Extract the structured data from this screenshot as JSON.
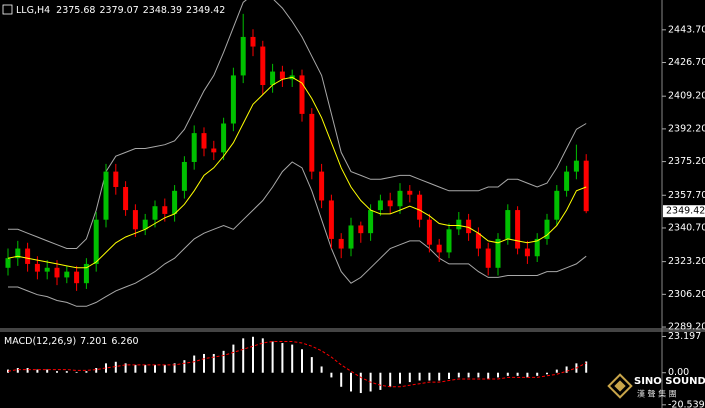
{
  "chart_data": [
    {
      "type": "candlestick",
      "title": "LLG,H4",
      "open": [
        2320,
        2325,
        2330,
        2322,
        2318,
        2320,
        2315,
        2318,
        2312,
        2322,
        2345,
        2370,
        2362,
        2350,
        2340,
        2345,
        2352,
        2348,
        2360,
        2375,
        2390,
        2382,
        2380,
        2395,
        2420,
        2440,
        2435,
        2415,
        2422,
        2418,
        2420,
        2400,
        2370,
        2355,
        2335,
        2330,
        2342,
        2338,
        2350,
        2355,
        2352,
        2360,
        2358,
        2345,
        2332,
        2328,
        2340,
        2345,
        2338,
        2330,
        2320,
        2335,
        2350,
        2330,
        2326,
        2335,
        2345,
        2360,
        2370,
        2375.68
      ],
      "high": [
        2330,
        2334,
        2333,
        2326,
        2324,
        2324,
        2321,
        2321,
        2325,
        2349,
        2374,
        2374,
        2365,
        2353,
        2348,
        2355,
        2356,
        2363,
        2378,
        2394,
        2393,
        2386,
        2398,
        2424,
        2452,
        2444,
        2438,
        2426,
        2425,
        2423,
        2423,
        2403,
        2374,
        2358,
        2338,
        2346,
        2344,
        2353,
        2358,
        2359,
        2364,
        2363,
        2360,
        2348,
        2335,
        2343,
        2349,
        2348,
        2341,
        2333,
        2338,
        2353,
        2352,
        2334,
        2338,
        2348,
        2363,
        2373,
        2384,
        2379.07
      ],
      "low": [
        2316,
        2321,
        2318,
        2314,
        2314,
        2311,
        2312,
        2308,
        2309,
        2318,
        2341,
        2358,
        2347,
        2336,
        2337,
        2341,
        2344,
        2344,
        2356,
        2371,
        2378,
        2376,
        2376,
        2391,
        2416,
        2430,
        2410,
        2411,
        2414,
        2414,
        2396,
        2366,
        2351,
        2330,
        2325,
        2326,
        2333,
        2334,
        2347,
        2348,
        2348,
        2354,
        2341,
        2328,
        2323,
        2325,
        2337,
        2334,
        2326,
        2316,
        2316,
        2332,
        2327,
        2322,
        2323,
        2332,
        2342,
        2357,
        2366,
        2348.39
      ],
      "close": [
        2325,
        2330,
        2322,
        2318,
        2320,
        2315,
        2318,
        2312,
        2322,
        2345,
        2370,
        2362,
        2350,
        2340,
        2345,
        2352,
        2348,
        2360,
        2375,
        2390,
        2382,
        2380,
        2395,
        2420,
        2440,
        2435,
        2415,
        2422,
        2418,
        2420,
        2400,
        2370,
        2355,
        2335,
        2330,
        2342,
        2338,
        2350,
        2355,
        2352,
        2360,
        2358,
        2345,
        2332,
        2328,
        2340,
        2345,
        2338,
        2330,
        2320,
        2335,
        2350,
        2330,
        2326,
        2335,
        2345,
        2360,
        2370,
        2375.68,
        2349.42
      ],
      "up_color": "#00c000",
      "down_color": "#ff0000",
      "ma": {
        "color": "#ffff00",
        "values": [
          2325,
          2326,
          2325,
          2324,
          2323,
          2322,
          2321,
          2320,
          2320,
          2323,
          2328,
          2333,
          2336,
          2338,
          2340,
          2343,
          2346,
          2348,
          2353,
          2360,
          2368,
          2372,
          2378,
          2385,
          2395,
          2405,
          2410,
          2415,
          2418,
          2419,
          2416,
          2408,
          2398,
          2385,
          2372,
          2362,
          2355,
          2350,
          2348,
          2348,
          2350,
          2352,
          2350,
          2347,
          2343,
          2342,
          2342,
          2341,
          2338,
          2334,
          2333,
          2335,
          2334,
          2333,
          2334,
          2337,
          2342,
          2350,
          2360,
          2362
        ]
      },
      "bands": {
        "color": "#a8a8a8",
        "upper": [
          2340,
          2340,
          2338,
          2336,
          2334,
          2332,
          2330,
          2330,
          2335,
          2350,
          2370,
          2378,
          2380,
          2382,
          2382,
          2383,
          2384,
          2386,
          2392,
          2402,
          2412,
          2420,
          2432,
          2445,
          2458,
          2462,
          2462,
          2460,
          2455,
          2448,
          2440,
          2430,
          2420,
          2400,
          2380,
          2370,
          2368,
          2366,
          2366,
          2367,
          2368,
          2368,
          2366,
          2364,
          2362,
          2360,
          2360,
          2360,
          2360,
          2362,
          2362,
          2366,
          2366,
          2364,
          2362,
          2364,
          2372,
          2382,
          2392,
          2395
        ],
        "lower": [
          2310,
          2310,
          2308,
          2306,
          2305,
          2303,
          2302,
          2300,
          2300,
          2302,
          2305,
          2308,
          2310,
          2312,
          2315,
          2318,
          2322,
          2325,
          2330,
          2335,
          2338,
          2340,
          2342,
          2340,
          2345,
          2350,
          2355,
          2362,
          2370,
          2375,
          2372,
          2360,
          2345,
          2330,
          2318,
          2312,
          2315,
          2320,
          2325,
          2330,
          2332,
          2334,
          2334,
          2330,
          2325,
          2322,
          2322,
          2322,
          2318,
          2315,
          2315,
          2316,
          2316,
          2316,
          2316,
          2318,
          2318,
          2320,
          2322,
          2326
        ]
      },
      "ylim": [
        2288.7,
        2459.2
      ],
      "yticks": [
        {
          "value": 2443.7,
          "label": "2443.70"
        },
        {
          "value": 2426.7,
          "label": "2426.70"
        },
        {
          "value": 2409.2,
          "label": "2409.20"
        },
        {
          "value": 2392.2,
          "label": "2392.20"
        },
        {
          "value": 2375.2,
          "label": "2375.20"
        },
        {
          "value": 2357.7,
          "label": "2357.70"
        },
        {
          "value": 2340.7,
          "label": "2340.70"
        },
        {
          "value": 2323.2,
          "label": "2323.20"
        },
        {
          "value": 2306.2,
          "label": "2306.20"
        },
        {
          "value": 2289.2,
          "label": "2289.20"
        }
      ]
    },
    {
      "type": "macd",
      "title": "MACD(12,26,9)",
      "histogram": {
        "color": "#ffffff",
        "values": [
          2,
          3,
          3,
          2,
          2,
          1,
          1,
          0.5,
          1,
          3,
          6,
          7,
          6,
          5,
          5,
          5,
          5,
          6,
          8,
          11,
          12,
          12,
          14,
          18,
          22,
          23,
          22,
          20,
          19,
          18,
          15,
          10,
          4,
          -3,
          -9,
          -12,
          -13,
          -12,
          -11,
          -9,
          -7,
          -6,
          -5,
          -5,
          -5,
          -4,
          -3,
          -3,
          -3,
          -4,
          -3,
          -2,
          -2,
          -3,
          -2,
          -1,
          2,
          4,
          6,
          7.201
        ]
      },
      "signal": {
        "color": "#ff0000",
        "values": [
          1,
          2,
          2,
          2,
          2,
          2,
          2,
          1.5,
          1.5,
          2,
          3,
          4,
          5,
          5,
          5,
          5,
          5,
          5,
          6,
          7,
          9,
          10,
          11,
          13,
          15,
          17,
          19,
          20,
          20,
          20,
          19,
          17,
          14,
          10,
          5,
          1,
          -3,
          -6,
          -8,
          -9,
          -9,
          -8,
          -7,
          -6,
          -6,
          -5,
          -4,
          -4,
          -4,
          -4,
          -4,
          -3,
          -3,
          -3,
          -3,
          -2,
          -1,
          1,
          3,
          6.26
        ],
        "last_label": "6.260"
      },
      "ylim": [
        -21.3,
        26.7
      ],
      "yticks": [
        23.197,
        {
          "value": 0,
          "label": "0.00"
        },
        -20.539
      ]
    }
  ],
  "logo": {
    "name": "SINO SOUND",
    "subtitle": "漢 聲 集 團"
  }
}
